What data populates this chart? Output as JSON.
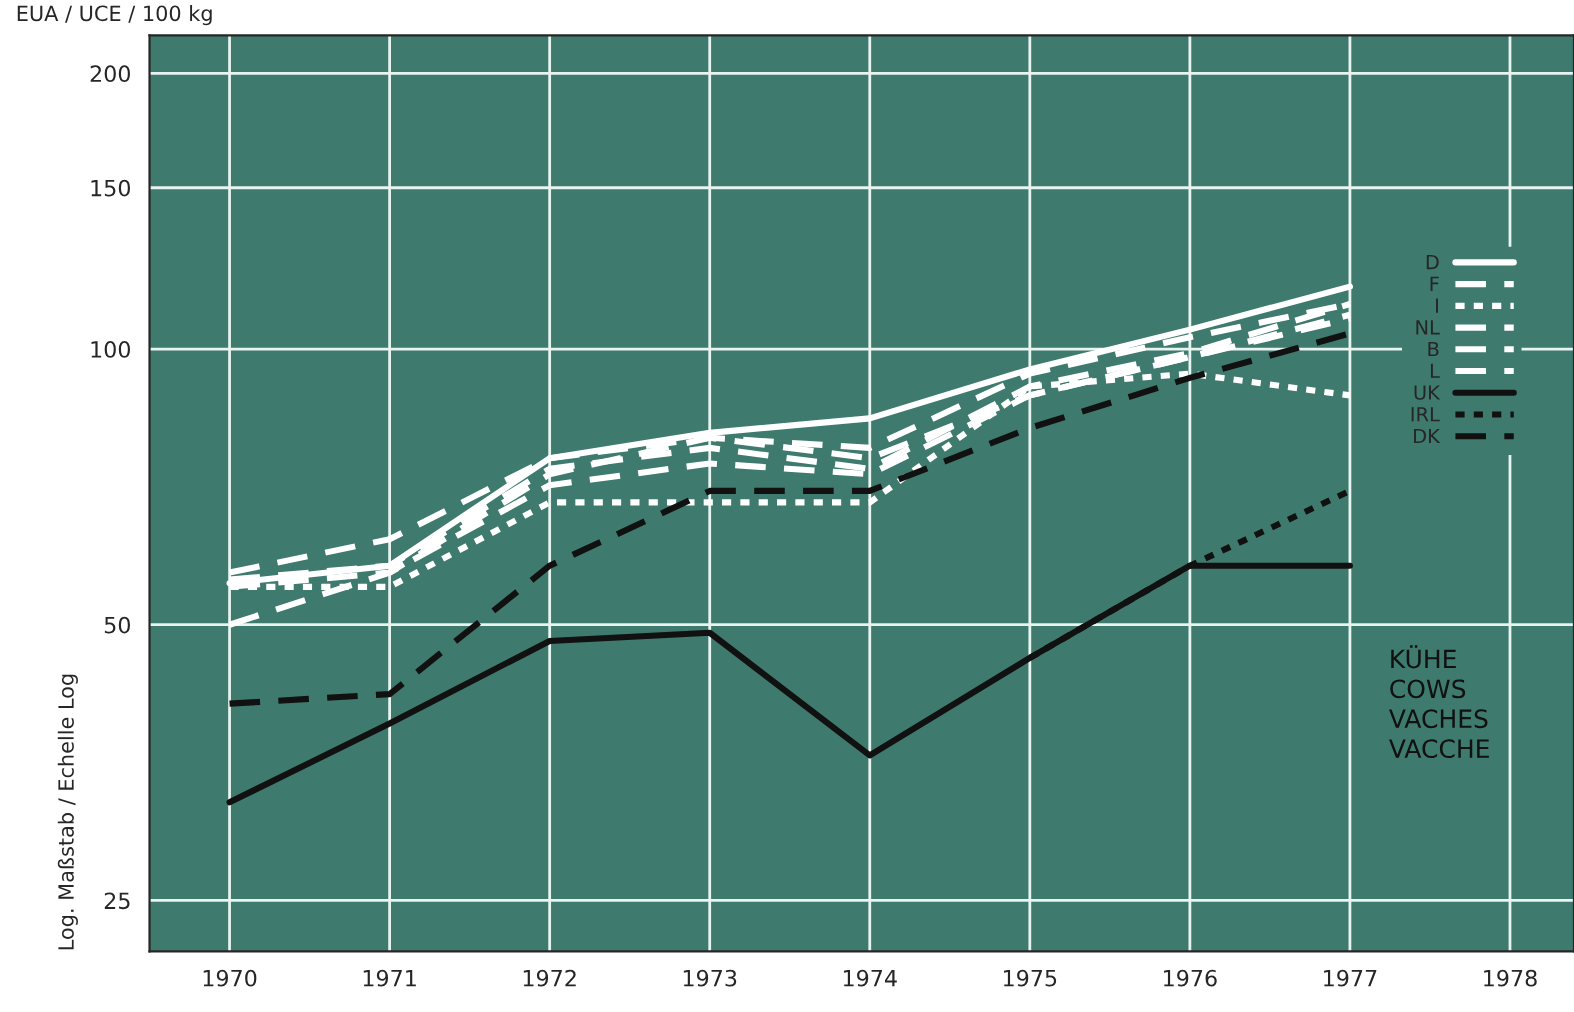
{
  "chart_data": {
    "type": "line",
    "ylabel": "Log. Maßstab / Echelle Log",
    "annotations": [
      "EUA / UCE / 100 kg",
      "KÜHE\nCOWS\nVACHES\nVACCHE"
    ],
    "x": [
      1970,
      1971,
      1972,
      1973,
      1974,
      1975,
      1976,
      1977
    ],
    "series": [
      {
        "name": "D",
        "color": "#ffffff",
        "line_style": "solid",
        "values": [
          55.5,
          58,
          76,
          81,
          84,
          95,
          105,
          117
        ]
      },
      {
        "name": "F",
        "color": "#ffffff",
        "line_style": "dashed",
        "values": [
          57,
          62,
          76,
          80,
          78,
          94,
          103,
          112
        ]
      },
      {
        "name": "I",
        "color": "#ffffff",
        "line_style": "dotted",
        "values": [
          55,
          55,
          68,
          68,
          68,
          91,
          94,
          89
        ]
      },
      {
        "name": "NL",
        "color": "#ffffff",
        "line_style": "dashed",
        "values": [
          50,
          57,
          71,
          75,
          73,
          89,
          98,
          109
        ]
      },
      {
        "name": "B",
        "color": "#ffffff",
        "line_style": "dashed",
        "values": [
          55,
          57,
          73,
          80,
          76,
          89,
          98,
          108
        ]
      },
      {
        "name": "L",
        "color": "#ffffff",
        "line_style": "dashed",
        "values": [
          56,
          58,
          74,
          78,
          74,
          91,
          99,
          112
        ]
      },
      {
        "name": "UK",
        "color": "#111111",
        "line_style": "solid",
        "values": [
          32,
          39,
          48,
          49,
          36,
          46,
          58,
          58
        ]
      },
      {
        "name": "IRL",
        "color": "#111111",
        "line_style": "dotted",
        "values": [
          null,
          null,
          null,
          null,
          null,
          46,
          58,
          70
        ]
      },
      {
        "name": "DK",
        "color": "#111111",
        "line_style": "dashed",
        "values": [
          41,
          42,
          58,
          70,
          70,
          82,
          93,
          104
        ]
      }
    ],
    "log": "y",
    "xlim": [
      1969.5,
      1978.4
    ],
    "xticks": [
      1970,
      1971,
      1972,
      1973,
      1974,
      1975,
      1976,
      1977,
      1978
    ],
    "ylim": [
      22,
      220
    ],
    "yticks": [
      25,
      50,
      100,
      150,
      200
    ],
    "grid": true,
    "legend": "top right"
  }
}
